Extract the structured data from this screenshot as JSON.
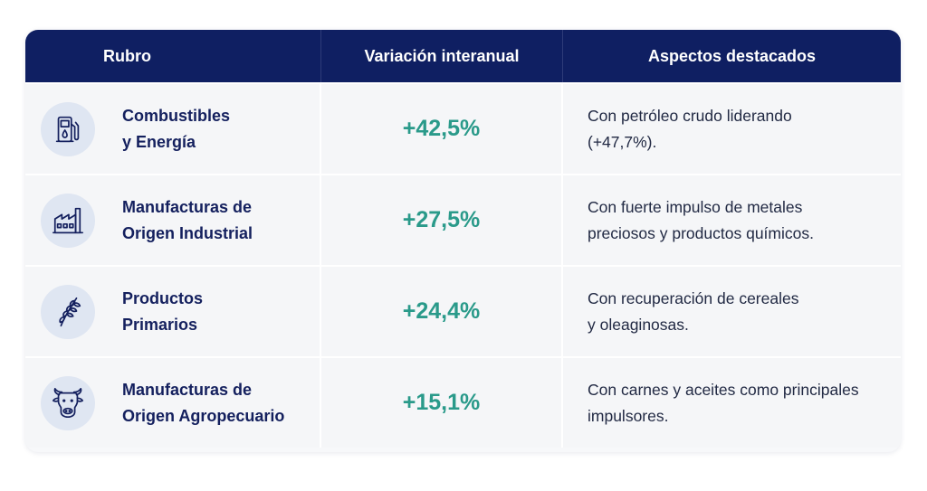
{
  "header": {
    "col_rubro": "Rubro",
    "col_variacion": "Variación interanual",
    "col_aspectos": "Aspectos destacados"
  },
  "colors": {
    "header_bg": "#0f1f62",
    "value": "#2a9a8a",
    "label": "#14205e"
  },
  "rows": [
    {
      "icon": "fuel-pump-icon",
      "rubro": "Combustibles\ny Energía",
      "variacion": "+42,5%",
      "aspectos": "Con petróleo crudo liderando\n(+47,7%)."
    },
    {
      "icon": "factory-icon",
      "rubro": "Manufacturas de\nOrigen Industrial",
      "variacion": "+27,5%",
      "aspectos": "Con fuerte impulso de metales\npreciosos y productos químicos."
    },
    {
      "icon": "wheat-icon",
      "rubro": "Productos\nPrimarios",
      "variacion": "+24,4%",
      "aspectos": "Con recuperación de cereales\ny oleaginosas."
    },
    {
      "icon": "cow-icon",
      "rubro": "Manufacturas de\nOrigen Agropecuario",
      "variacion": "+15,1%",
      "aspectos": "Con carnes y aceites como principales\nimpulsores."
    }
  ]
}
